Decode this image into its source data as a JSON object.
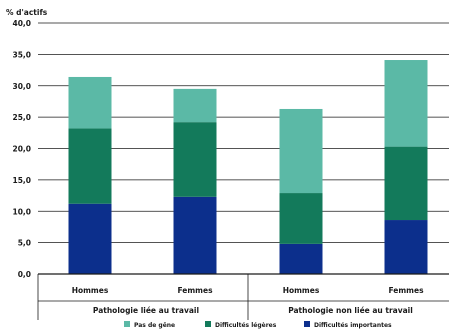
{
  "chart_data": {
    "type": "bar",
    "stacked": true,
    "ylabel": "% d'actifs",
    "ylim": [
      0,
      40
    ],
    "yticks": [
      "0,0",
      "5,0",
      "10,0",
      "15,0",
      "20,0",
      "25,0",
      "30,0",
      "35,0",
      "40,0"
    ],
    "grid": true,
    "categories": [
      "Hommes",
      "Femmes",
      "Hommes",
      "Femmes"
    ],
    "groups": [
      "Pathologie liée au travail",
      "Pathologie non liée au travail"
    ],
    "series": [
      {
        "name": "Difficultés importantes",
        "color": "#0c2f8c",
        "values": [
          11.2,
          12.3,
          4.8,
          8.6
        ]
      },
      {
        "name": "Difficultés légères",
        "color": "#137a5b",
        "values": [
          12.0,
          11.9,
          8.1,
          11.7
        ]
      },
      {
        "name": "Pas de gêne",
        "color": "#5bb9a6",
        "values": [
          8.2,
          5.3,
          13.4,
          13.8
        ]
      }
    ],
    "legend_order": [
      2,
      1,
      0
    ],
    "legend_position": "bottom"
  }
}
